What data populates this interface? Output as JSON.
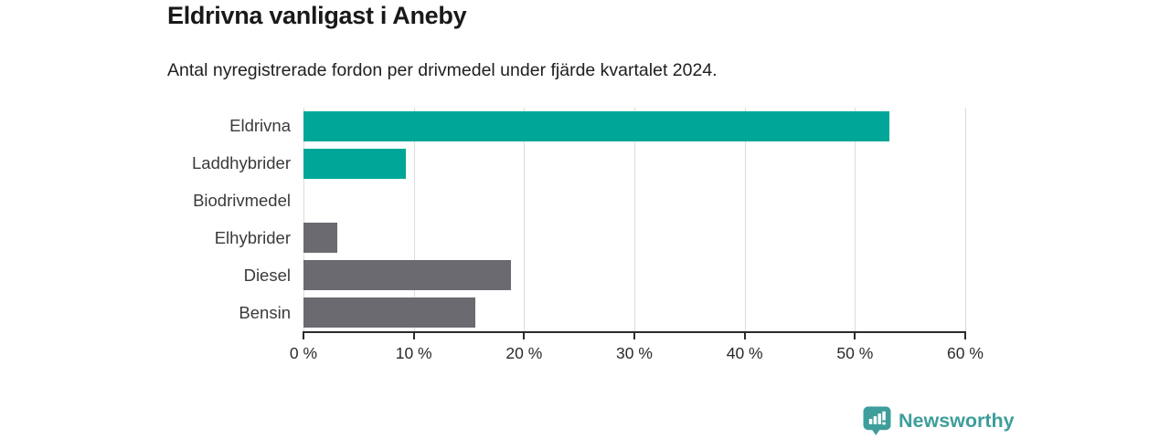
{
  "header": {
    "title": "Eldrivna vanligast i Aneby",
    "subtitle": "Antal nyregistrerade fordon per drivmedel under fjärde kvartalet 2024."
  },
  "chart_data": {
    "type": "bar",
    "orientation": "horizontal",
    "title": "Eldrivna vanligast i Aneby",
    "subtitle": "Antal nyregistrerade fordon per drivmedel under fjärde kvartalet 2024.",
    "categories": [
      "Eldrivna",
      "Laddhybrider",
      "Biodrivmedel",
      "Elhybrider",
      "Diesel",
      "Bensin"
    ],
    "values": [
      53.1,
      9.3,
      0,
      3.1,
      18.8,
      15.6
    ],
    "unit": "%",
    "bar_colors": [
      "#00a698",
      "#00a698",
      "#6a6a70",
      "#6a6a70",
      "#6a6a70",
      "#6a6a70"
    ],
    "xlabel": "",
    "ylabel": "",
    "xlim": [
      0,
      60
    ],
    "x_ticks": [
      0,
      10,
      20,
      30,
      40,
      50,
      60
    ],
    "x_tick_labels": [
      "0 %",
      "10 %",
      "20 %",
      "30 %",
      "40 %",
      "50 %",
      "60 %"
    ],
    "grid": "vertical",
    "legend": "none"
  },
  "footer": {
    "brand": "Newsworthy"
  },
  "colors": {
    "accent_teal": "#00a698",
    "bar_gray": "#6a6a70",
    "logo_teal": "#3d9e9b",
    "gridline": "#dcdcdc",
    "axis": "#2b2b2b"
  },
  "icons": {
    "logo_icon": "bar-chart-speech-bubble-icon"
  }
}
